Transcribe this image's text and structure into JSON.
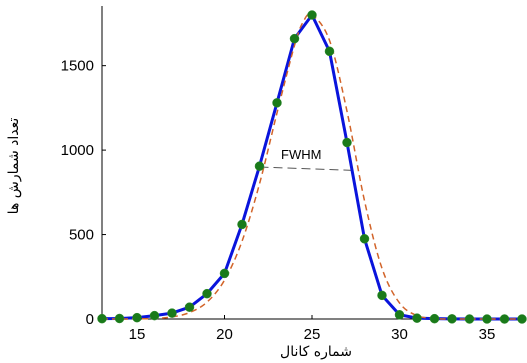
{
  "chart_data": {
    "type": "line",
    "xlabel": "شماره کانال",
    "ylabel": "تعداد شمارش ها",
    "xlim": [
      13,
      37
    ],
    "ylim": [
      0,
      1800
    ],
    "xticks": [
      15,
      20,
      25,
      30,
      35
    ],
    "yticks": [
      0,
      500,
      1000,
      1500
    ],
    "grid": false,
    "annotation": "FWHM",
    "fwhm_line": {
      "x": [
        22,
        27.3
      ],
      "y": [
        900,
        880
      ]
    },
    "series": [
      {
        "style": "solid-with-markers",
        "color": "#0a14dc",
        "marker_color": "#1a7a1a",
        "x": [
          13,
          14,
          15,
          16,
          17,
          18,
          19,
          20,
          21,
          22,
          23,
          24,
          25,
          26,
          27,
          28,
          29,
          30,
          31,
          32,
          33,
          34,
          35,
          36,
          37
        ],
        "y": [
          2,
          3,
          8,
          20,
          35,
          70,
          150,
          270,
          560,
          905,
          1280,
          1660,
          1800,
          1585,
          1045,
          475,
          140,
          25,
          5,
          2,
          1,
          0,
          0,
          0,
          0
        ]
      },
      {
        "style": "dashed",
        "color": "#d2642a",
        "x": [
          13,
          14,
          15,
          16,
          17,
          18,
          19,
          20,
          21,
          22,
          23,
          24,
          24.5,
          25,
          26,
          27,
          28,
          29,
          30,
          31,
          32,
          33,
          34,
          35,
          36,
          37
        ],
        "y": [
          0,
          0,
          1,
          3,
          12,
          38,
          100,
          230,
          460,
          800,
          1220,
          1620,
          1760,
          1800,
          1650,
          1230,
          700,
          300,
          95,
          20,
          3,
          0,
          0,
          0,
          0,
          0
        ]
      }
    ]
  }
}
